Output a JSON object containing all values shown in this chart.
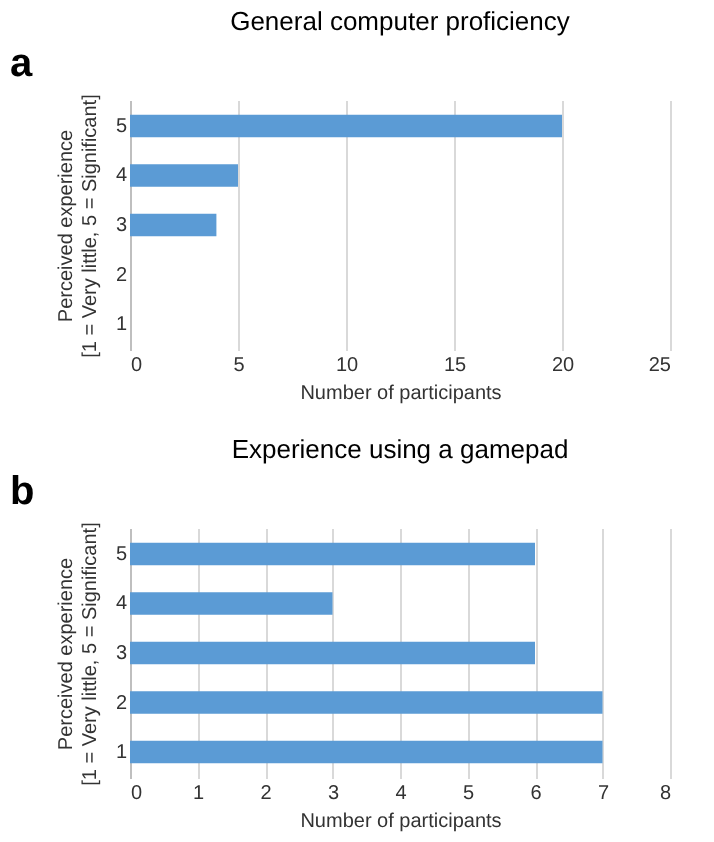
{
  "chart_data": [
    {
      "type": "bar",
      "orientation": "horizontal",
      "title": "General computer proficiency",
      "categories": [
        "5",
        "4",
        "3",
        "2",
        "1"
      ],
      "values": [
        20,
        5,
        4,
        0,
        0
      ],
      "color": "#5b9bd5",
      "xlim": [
        0,
        25
      ],
      "xticks": [
        0,
        5,
        10,
        15,
        20,
        25
      ],
      "xlabel": "Number of participants",
      "ylabel": "Perceived experience\n[1 = Very little, 5 = Significant]",
      "grid": "x",
      "annotations": [
        "a"
      ]
    },
    {
      "type": "bar",
      "orientation": "horizontal",
      "title": "Experience using a gamepad",
      "categories": [
        "5",
        "4",
        "3",
        "2",
        "1"
      ],
      "values": [
        6,
        3,
        6,
        7,
        7
      ],
      "color": "#5b9bd5",
      "xlim": [
        0,
        8
      ],
      "xticks": [
        0,
        1,
        2,
        3,
        4,
        5,
        6,
        7,
        8
      ],
      "xlabel": "Number of participants",
      "ylabel": "Perceived experience\n[1 = Very little, 5 = Significant]",
      "grid": "x",
      "annotations": [
        "b"
      ]
    }
  ]
}
